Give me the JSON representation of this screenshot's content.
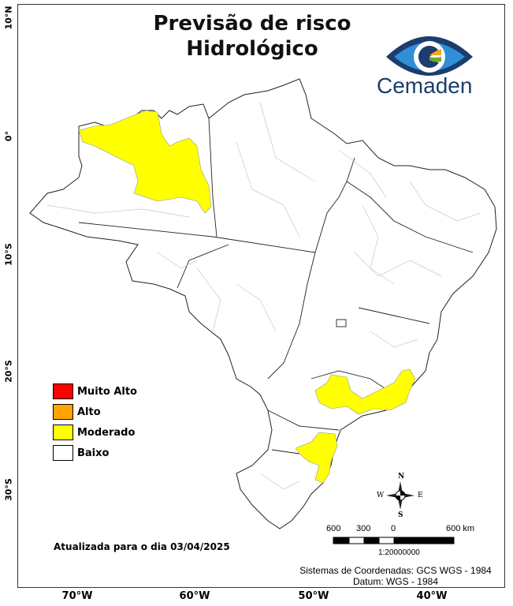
{
  "title_line1": "Previsão de risco",
  "title_line2": "Hidrológico",
  "logo": {
    "text": "Cemaden"
  },
  "axes": {
    "lat_labels": [
      "10°N",
      "0°",
      "10°S",
      "20°S",
      "30°S"
    ],
    "lon_labels": [
      "70°W",
      "60°W",
      "50°W",
      "40°W"
    ]
  },
  "legend": [
    {
      "label": "Muito Alto",
      "color": "#ff0000"
    },
    {
      "label": "Alto",
      "color": "#ffa500"
    },
    {
      "label": "Moderado",
      "color": "#ffff00"
    },
    {
      "label": "Baixo",
      "color": "#ffffff"
    }
  ],
  "updated": "Atualizada para o dia 03/04/2025",
  "compass": {
    "n": "N",
    "s": "S",
    "e": "E",
    "w": "W"
  },
  "scale_bar": {
    "ticks": [
      "600",
      "300",
      "0",
      "600 km"
    ],
    "ratio": "1:20000000"
  },
  "crs": {
    "line1": "Sistemas de Coordenadas: GCS WGS - 1984",
    "line2": "Datum: WGS - 1984"
  },
  "risk_regions": [
    {
      "area": "Amazonas central",
      "level": "Moderado"
    },
    {
      "area": "São Paulo / Rio de Janeiro / sul de Minas",
      "level": "Moderado"
    },
    {
      "area": "Santa Catarina litoral",
      "level": "Moderado"
    }
  ]
}
